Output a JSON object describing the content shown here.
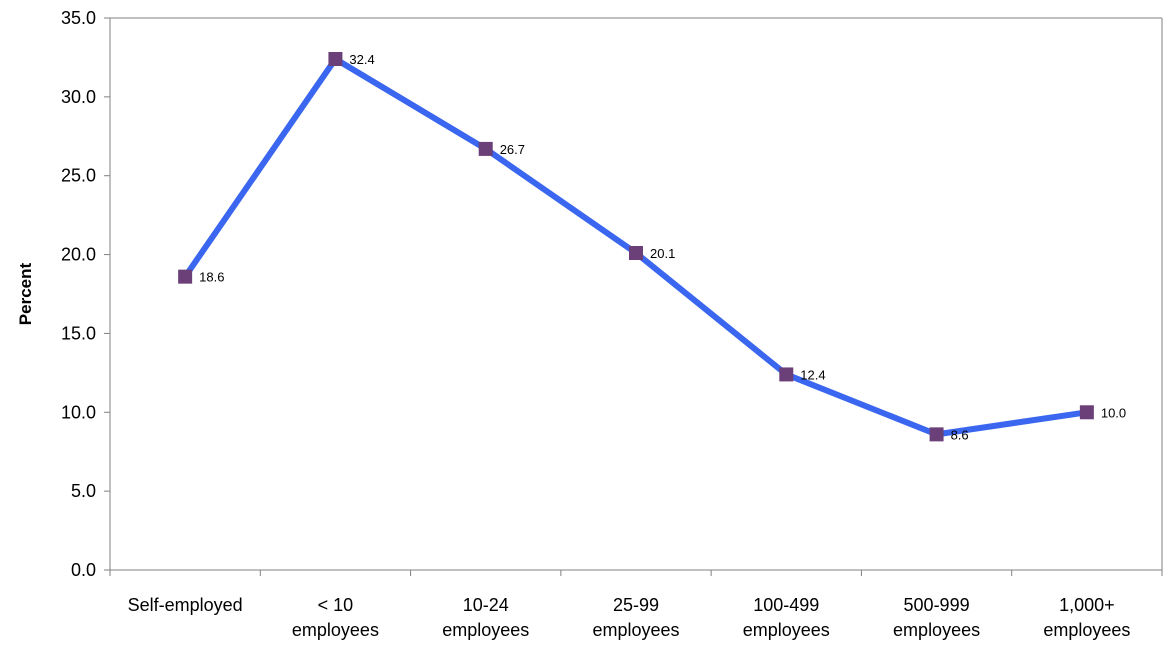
{
  "chart_data": {
    "type": "line",
    "title": "",
    "xlabel": "",
    "ylabel": "Percent",
    "categories": [
      [
        "Self-employed"
      ],
      [
        "< 10",
        "employees"
      ],
      [
        "10-24",
        "employees"
      ],
      [
        "25-99",
        "employees"
      ],
      [
        "100-499",
        "employees"
      ],
      [
        "500-999",
        "employees"
      ],
      [
        "1,000+",
        "employees"
      ]
    ],
    "values": [
      18.6,
      32.4,
      26.7,
      20.1,
      12.4,
      8.6,
      10.0
    ],
    "data_labels": [
      "18.6",
      "32.4",
      "26.7",
      "20.1",
      "12.4",
      "8.6",
      "10.0"
    ],
    "ylim": [
      0,
      35
    ],
    "yticks": [
      "0.0",
      "5.0",
      "10.0",
      "15.0",
      "20.0",
      "25.0",
      "30.0",
      "35.0"
    ],
    "grid": false,
    "legend": "none",
    "colors": {
      "line": "#3a66f0",
      "marker": "#6b3f78",
      "axis": "#808080"
    }
  }
}
